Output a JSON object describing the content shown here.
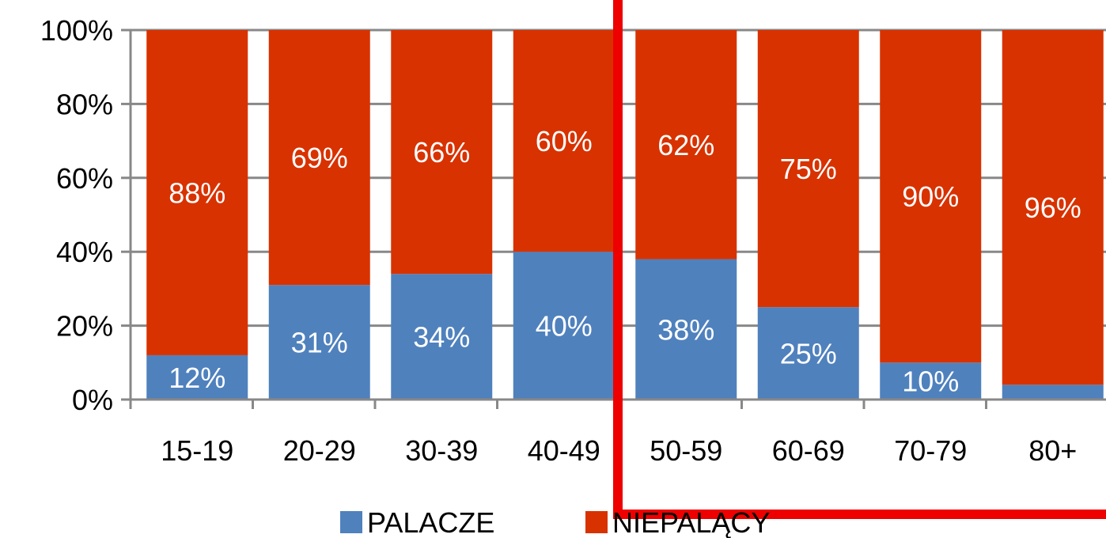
{
  "chart_data": {
    "type": "bar",
    "stacked": true,
    "categories": [
      "15-19",
      "20-29",
      "30-39",
      "40-49",
      "50-59",
      "60-69",
      "70-79",
      "80+"
    ],
    "series": [
      {
        "name": "PALACZE",
        "color": "#4f81bd",
        "values": [
          12,
          31,
          34,
          40,
          38,
          25,
          10,
          4
        ],
        "labels": [
          "12%",
          "31%",
          "34%",
          "40%",
          "38%",
          "25%",
          "10%",
          ""
        ]
      },
      {
        "name": "NIEPALĄCY",
        "color": "#d83200",
        "values": [
          88,
          69,
          66,
          60,
          62,
          75,
          90,
          96
        ],
        "labels": [
          "88%",
          "69%",
          "66%",
          "60%",
          "62%",
          "75%",
          "90%",
          "96%"
        ]
      }
    ],
    "y_ticks": [
      "0%",
      "20%",
      "40%",
      "60%",
      "80%",
      "100%"
    ],
    "ylim": [
      0,
      100
    ],
    "grid": true,
    "gridline_color": "#888888",
    "legend_position": "bottom",
    "highlight": {
      "categories": [
        "50-59",
        "60-69",
        "70-79",
        "80+"
      ],
      "color": "#ee0000"
    }
  }
}
